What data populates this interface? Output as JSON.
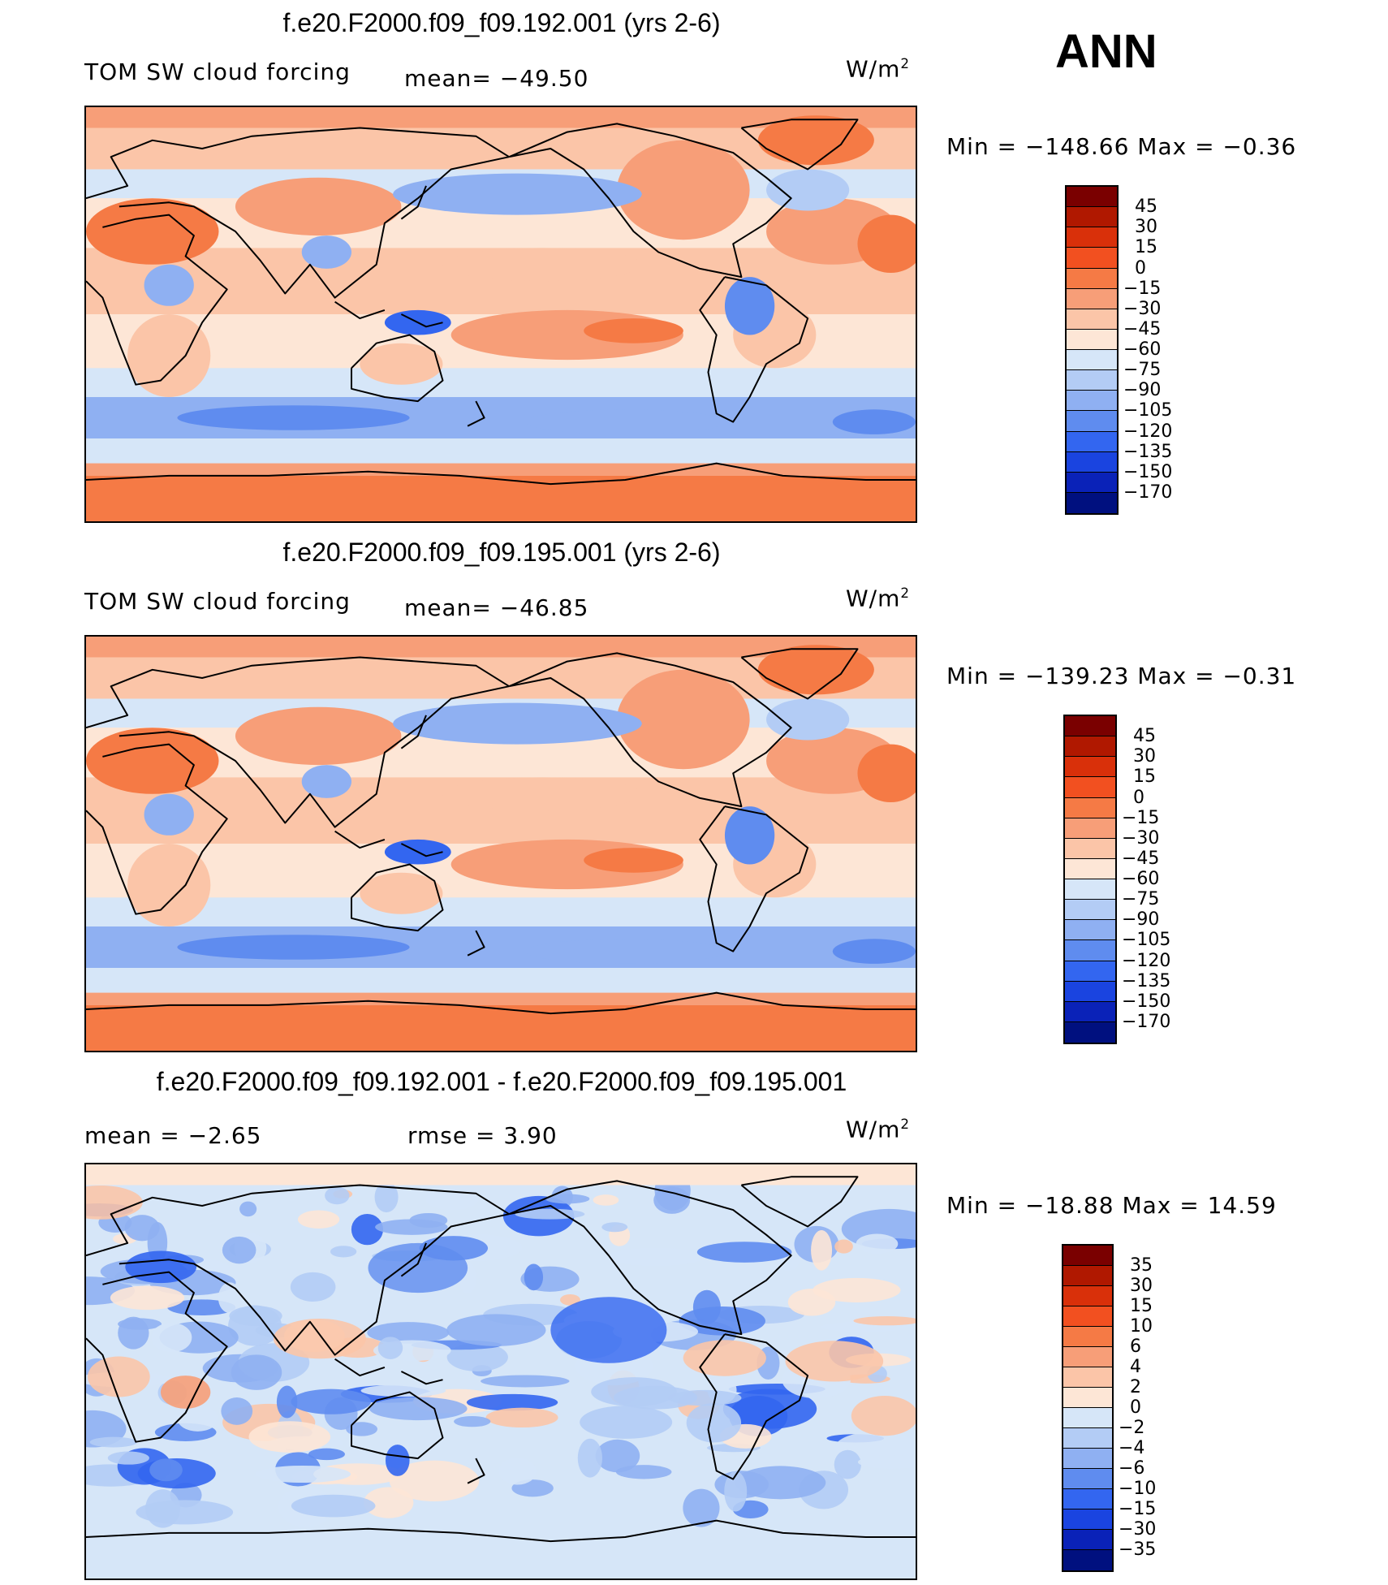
{
  "season": "ANN",
  "units_base": "W/m",
  "units_exp": "2",
  "chart_data": [
    {
      "type": "heatmap",
      "title": "f.e20.F2000.f09_f09.192.001 (yrs 2-6)",
      "variable": "TOM SW cloud forcing",
      "mean_text": "mean= −49.50",
      "minmax_text": "Min  =  −148.66  Max  =    −0.36",
      "mean": -49.5,
      "min": -148.66,
      "max": -0.36,
      "colorbar": {
        "labels": [
          "45",
          "30",
          "15",
          "0",
          "−15",
          "−30",
          "−45",
          "−60",
          "−75",
          "−90",
          "−105",
          "−120",
          "−135",
          "−150",
          "−170"
        ],
        "colors": [
          "#7a0000",
          "#b01800",
          "#d9300a",
          "#f25020",
          "#f57a45",
          "#f79e78",
          "#fbc5a8",
          "#fde6d6",
          "#d6e6f8",
          "#b3ccf5",
          "#8fb0f2",
          "#5f8cef",
          "#3366f0",
          "#1a44e0",
          "#0a22b8",
          "#00107f"
        ]
      }
    },
    {
      "type": "heatmap",
      "title": "f.e20.F2000.f09_f09.195.001 (yrs 2-6)",
      "variable": "TOM SW cloud forcing",
      "mean_text": "mean= −46.85",
      "minmax_text": "Min  =  −139.23  Max  =    −0.31",
      "mean": -46.85,
      "min": -139.23,
      "max": -0.31,
      "colorbar": {
        "labels": [
          "45",
          "30",
          "15",
          "0",
          "−15",
          "−30",
          "−45",
          "−60",
          "−75",
          "−90",
          "−105",
          "−120",
          "−135",
          "−150",
          "−170"
        ],
        "colors": [
          "#7a0000",
          "#b01800",
          "#d9300a",
          "#f25020",
          "#f57a45",
          "#f79e78",
          "#fbc5a8",
          "#fde6d6",
          "#d6e6f8",
          "#b3ccf5",
          "#8fb0f2",
          "#5f8cef",
          "#3366f0",
          "#1a44e0",
          "#0a22b8",
          "#00107f"
        ]
      }
    },
    {
      "type": "heatmap",
      "title": "f.e20.F2000.f09_f09.192.001 - f.e20.F2000.f09_f09.195.001",
      "mean_text": "mean  =    −2.65",
      "rmse_text": "rmse  =     3.90",
      "minmax_text": "Min  =  −18.88  Max  =    14.59",
      "mean": -2.65,
      "rmse": 3.9,
      "min": -18.88,
      "max": 14.59,
      "colorbar": {
        "labels": [
          "35",
          "30",
          "15",
          "10",
          "6",
          "4",
          "2",
          "0",
          "−2",
          "−4",
          "−6",
          "−10",
          "−15",
          "−30",
          "−35"
        ],
        "colors": [
          "#7a0000",
          "#b01800",
          "#d9300a",
          "#f25020",
          "#f57a45",
          "#f79e78",
          "#fbc5a8",
          "#fde6d6",
          "#d6e6f8",
          "#b3ccf5",
          "#8fb0f2",
          "#5f8cef",
          "#3366f0",
          "#1a44e0",
          "#0a22b8",
          "#00107f"
        ]
      }
    }
  ]
}
